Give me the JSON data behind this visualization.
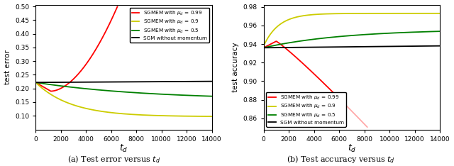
{
  "fig_width": 6.4,
  "fig_height": 2.34,
  "dpi": 100,
  "left_title": "(a) Test error versus $t_d$",
  "right_title": "(b) Test accuracy versus $t_d$",
  "legend_labels": [
    "SGMEM with $\\mu_d$ = 0.99",
    "SGMEM with $\\mu_d$ = 0.9",
    "SGMEM with $\\mu_d$ = 0.5",
    "SGM without momentum"
  ],
  "left_ylabel": "test error",
  "left_xlabel": "$t_d$",
  "left_ylim": [
    0.05,
    0.505
  ],
  "left_yticks": [
    0.1,
    0.15,
    0.2,
    0.25,
    0.3,
    0.35,
    0.4,
    0.45,
    0.5
  ],
  "left_xlim": [
    0,
    14000
  ],
  "left_xticks": [
    0,
    2000,
    4000,
    6000,
    8000,
    10000,
    12000,
    14000
  ],
  "right_ylabel": "test accuracy",
  "right_xlabel": "$t_d$",
  "right_ylim": [
    0.848,
    0.982
  ],
  "right_yticks": [
    0.86,
    0.88,
    0.9,
    0.92,
    0.94,
    0.96,
    0.98
  ],
  "right_xlim": [
    0,
    14000
  ],
  "right_xticks": [
    0,
    2000,
    4000,
    6000,
    8000,
    10000,
    12000,
    14000
  ]
}
